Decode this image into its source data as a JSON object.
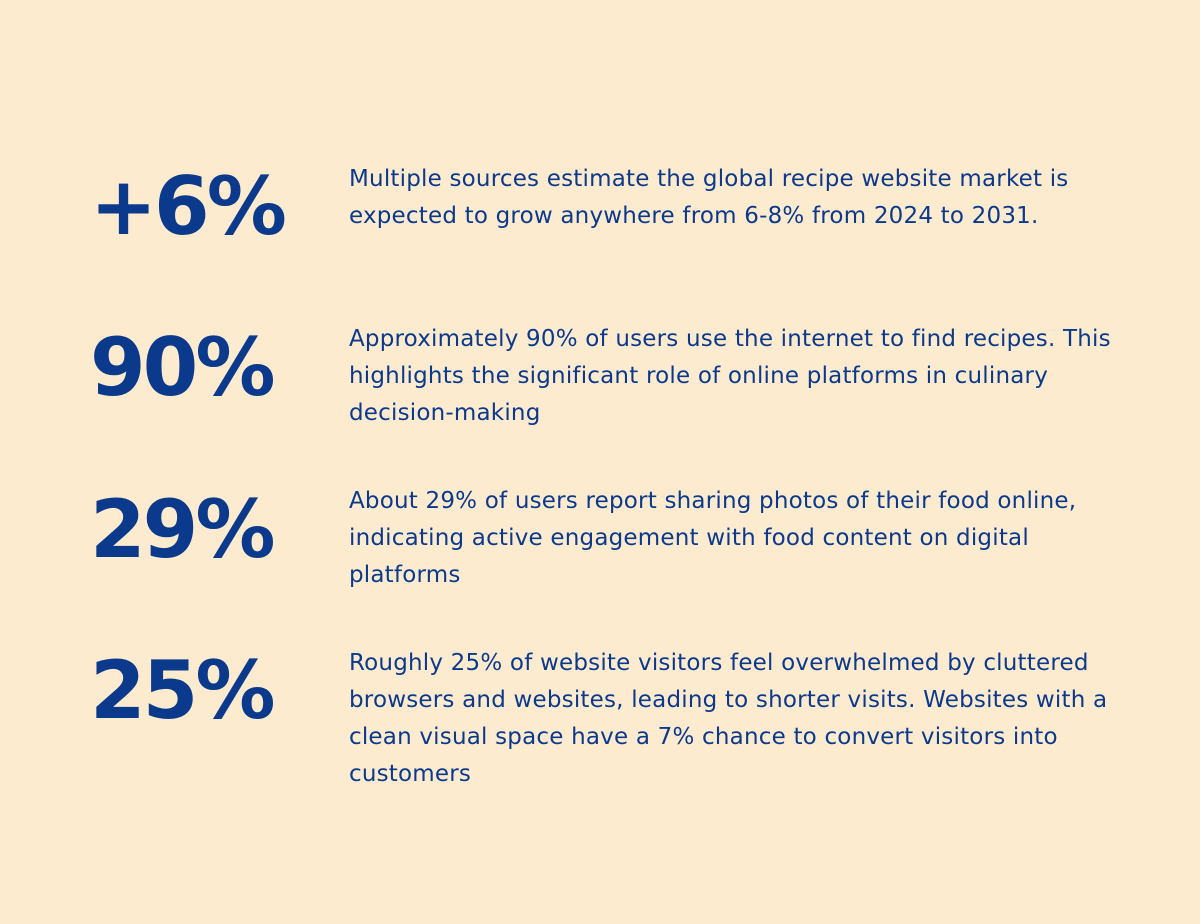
{
  "theme": {
    "background": "#FDEBD0",
    "accent": "#0B3A8C"
  },
  "stats": [
    {
      "value": "+6%",
      "description": "Multiple sources estimate the global recipe website market is expected to grow anywhere from 6-8% from 2024 to 2031."
    },
    {
      "value": "90%",
      "description": "Approximately 90% of users use the internet to find recipes. This highlights the significant role of online platforms in culinary decision-making"
    },
    {
      "value": "29%",
      "description": "About 29% of users report sharing photos of their food online, indicating active engagement with food content on digital platforms"
    },
    {
      "value": "25%",
      "description": "Roughly 25% of website visitors feel overwhelmed by cluttered browsers and websites, leading to shorter visits. Websites with a clean visual space have a 7% chance to convert visitors into customers"
    }
  ]
}
